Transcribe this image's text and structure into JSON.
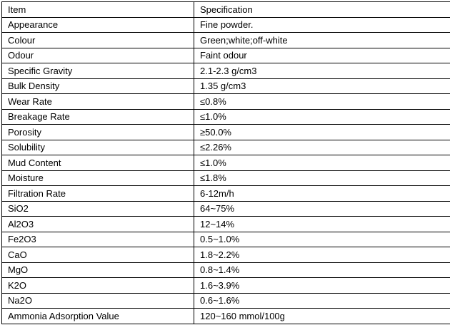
{
  "table": {
    "columns": [
      "Item",
      "Specification"
    ],
    "rows": [
      {
        "item": "Appearance",
        "spec": "Fine powder."
      },
      {
        "item": "Colour",
        "spec": "Green;white;off-white"
      },
      {
        "item": "Odour",
        "spec": "Faint odour"
      },
      {
        "item": "Specific Gravity",
        "spec": "2.1-2.3 g/cm3"
      },
      {
        "item": "Bulk Density",
        "spec": "1.35 g/cm3"
      },
      {
        "item": "Wear Rate",
        "spec": "≤0.8%"
      },
      {
        "item": "Breakage Rate",
        "spec": "≤1.0%"
      },
      {
        "item": "Porosity",
        "spec": "≥50.0%"
      },
      {
        "item": "Solubility",
        "spec": "≤2.26%"
      },
      {
        "item": "Mud Content",
        "spec": "≤1.0%"
      },
      {
        "item": "Moisture",
        "spec": "≤1.8%"
      },
      {
        "item": "Filtration Rate",
        "spec": "6-12m/h"
      },
      {
        "item": "SiO2",
        "spec": "64~75%"
      },
      {
        "item": "Al2O3",
        "spec": "12~14%"
      },
      {
        "item": "Fe2O3",
        "spec": "0.5~1.0%"
      },
      {
        "item": "CaO",
        "spec": "1.8~2.2%"
      },
      {
        "item": "MgO",
        "spec": "0.8~1.4%"
      },
      {
        "item": "K2O",
        "spec": "1.6~3.9%"
      },
      {
        "item": "Na2O",
        "spec": "0.6~1.6%"
      },
      {
        "item": "Ammonia Adsorption Value",
        "spec": "120~160 mmol/100g"
      }
    ],
    "border_color": "#000000",
    "text_color": "#000000",
    "background_color": "#ffffff"
  }
}
